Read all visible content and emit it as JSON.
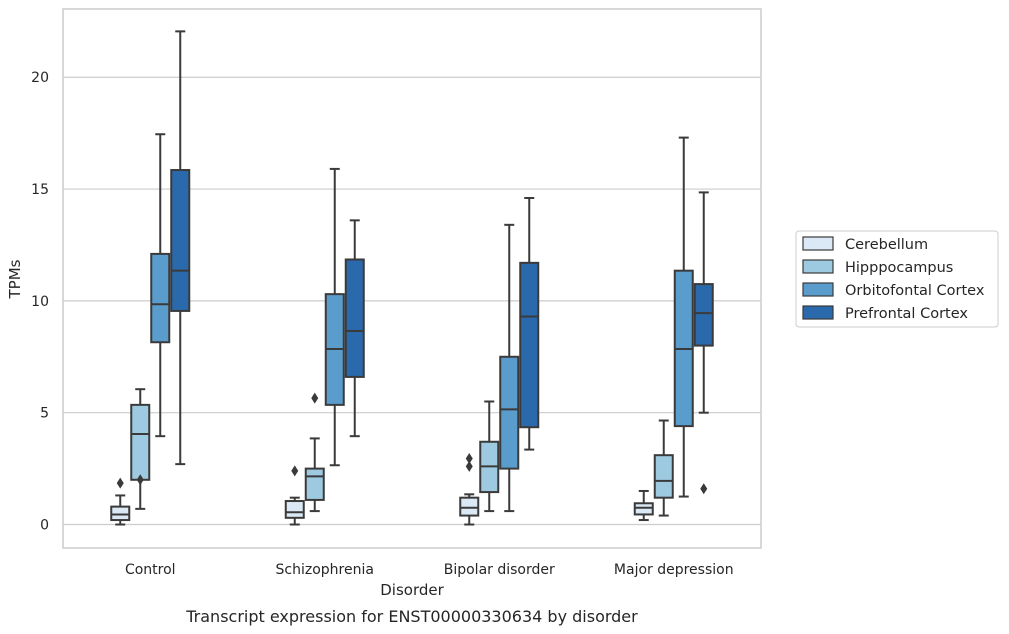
{
  "chart_data": {
    "type": "box",
    "categories": [
      "Control",
      "Schizophrenia",
      "Bipolar disorder",
      "Major depression"
    ],
    "xlabel": "Disorder",
    "ylabel": "TPMs",
    "caption": "Transcript expression for ENST00000330634 by disorder",
    "ylim": [
      -1.05,
      23.05
    ],
    "yticks": [
      0,
      5,
      10,
      15,
      20
    ],
    "grid": "horizontal",
    "legend_position": "right",
    "series": [
      {
        "name": "Cerebellum",
        "color": "#dbe9f6",
        "boxes": [
          {
            "whisker_low": 0.0,
            "q1": 0.2,
            "median": 0.45,
            "q3": 0.8,
            "whisker_high": 1.3,
            "outliers": [
              1.85
            ]
          },
          {
            "whisker_low": 0.0,
            "q1": 0.3,
            "median": 0.55,
            "q3": 1.05,
            "whisker_high": 1.2,
            "outliers": [
              2.4
            ]
          },
          {
            "whisker_low": 0.0,
            "q1": 0.4,
            "median": 0.75,
            "q3": 1.2,
            "whisker_high": 1.35,
            "outliers": [
              2.6,
              2.95
            ]
          },
          {
            "whisker_low": 0.2,
            "q1": 0.45,
            "median": 0.75,
            "q3": 0.95,
            "whisker_high": 1.5,
            "outliers": []
          }
        ]
      },
      {
        "name": "Hipppocampus",
        "color": "#9ecae1",
        "boxes": [
          {
            "whisker_low": 0.7,
            "q1": 2.0,
            "median": 4.05,
            "q3": 5.35,
            "whisker_high": 6.05,
            "outliers": [
              2.0
            ]
          },
          {
            "whisker_low": 0.6,
            "q1": 1.1,
            "median": 2.15,
            "q3": 2.5,
            "whisker_high": 3.85,
            "outliers": [
              5.65
            ]
          },
          {
            "whisker_low": 0.6,
            "q1": 1.45,
            "median": 2.6,
            "q3": 3.7,
            "whisker_high": 5.5,
            "outliers": []
          },
          {
            "whisker_low": 0.4,
            "q1": 1.2,
            "median": 1.95,
            "q3": 3.1,
            "whisker_high": 4.65,
            "outliers": []
          }
        ]
      },
      {
        "name": "Orbitofontal Cortex",
        "color": "#5a9dcd",
        "boxes": [
          {
            "whisker_low": 3.95,
            "q1": 8.15,
            "median": 9.85,
            "q3": 12.1,
            "whisker_high": 17.45,
            "outliers": []
          },
          {
            "whisker_low": 2.65,
            "q1": 5.35,
            "median": 7.85,
            "q3": 10.3,
            "whisker_high": 15.9,
            "outliers": []
          },
          {
            "whisker_low": 0.6,
            "q1": 2.5,
            "median": 5.15,
            "q3": 7.5,
            "whisker_high": 13.4,
            "outliers": []
          },
          {
            "whisker_low": 1.25,
            "q1": 4.4,
            "median": 7.85,
            "q3": 11.35,
            "whisker_high": 17.3,
            "outliers": []
          }
        ]
      },
      {
        "name": "Prefrontal Cortex",
        "color": "#2a6aac",
        "boxes": [
          {
            "whisker_low": 2.7,
            "q1": 9.55,
            "median": 11.35,
            "q3": 15.85,
            "whisker_high": 22.05,
            "outliers": []
          },
          {
            "whisker_low": 3.95,
            "q1": 6.6,
            "median": 8.65,
            "q3": 11.85,
            "whisker_high": 13.6,
            "outliers": []
          },
          {
            "whisker_low": 3.35,
            "q1": 4.35,
            "median": 9.3,
            "q3": 11.7,
            "whisker_high": 14.6,
            "outliers": []
          },
          {
            "whisker_low": 5.0,
            "q1": 8.0,
            "median": 9.45,
            "q3": 10.75,
            "whisker_high": 14.85,
            "outliers": [
              1.6
            ]
          }
        ]
      }
    ]
  }
}
